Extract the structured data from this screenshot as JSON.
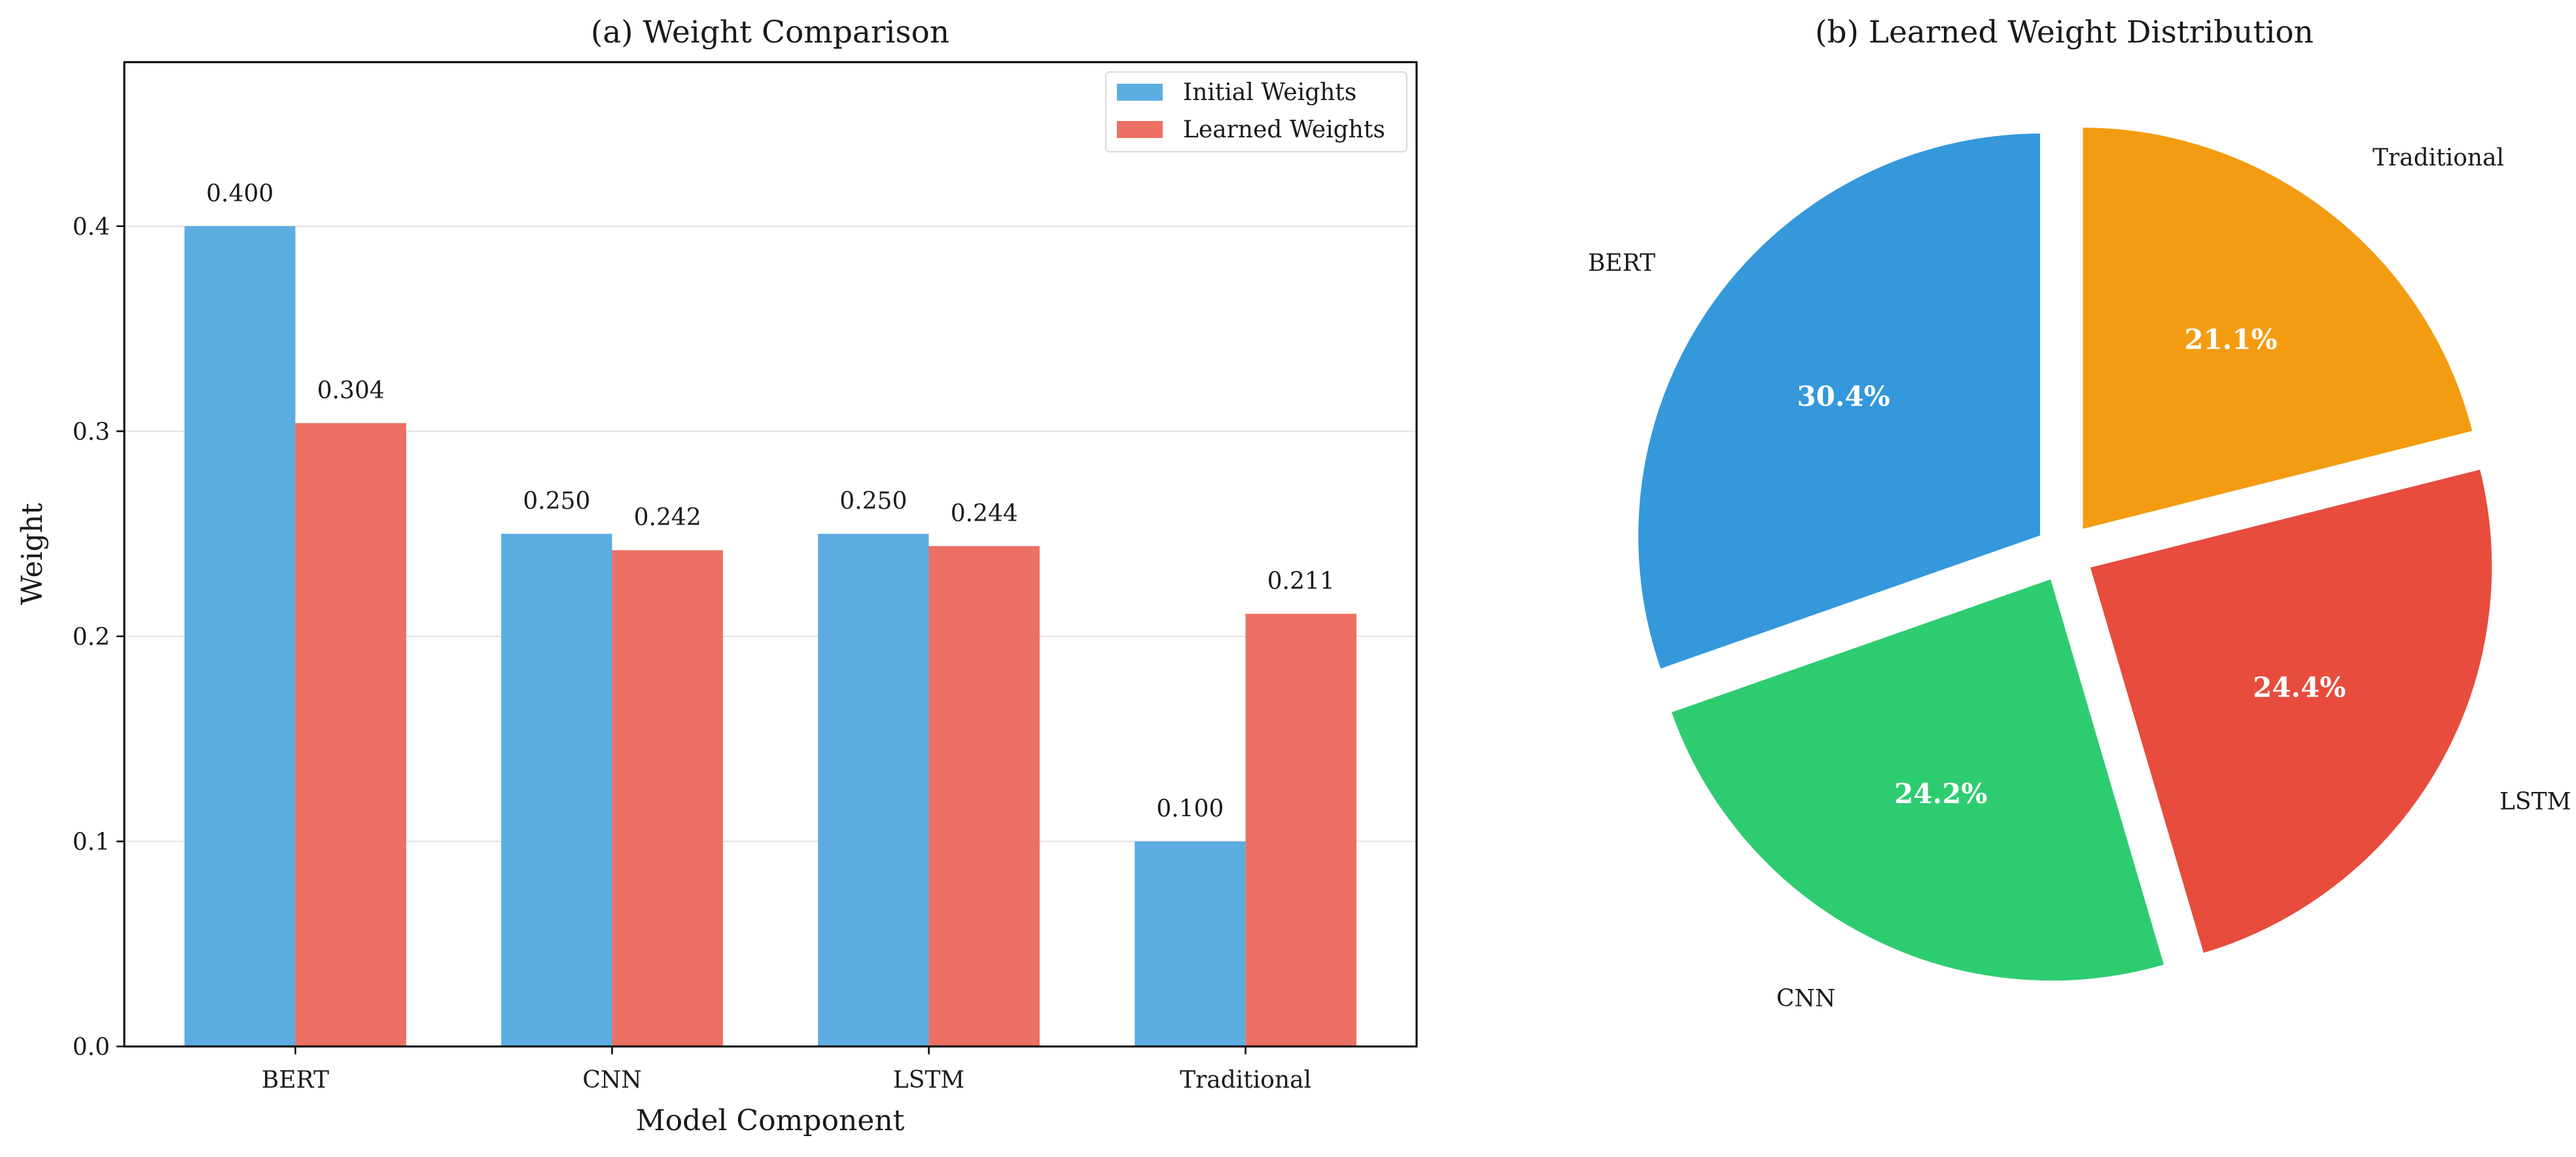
{
  "chart_data": [
    {
      "type": "bar",
      "title": "(a) Weight Comparison",
      "xlabel": "Model Component",
      "ylabel": "Weight",
      "categories": [
        "BERT",
        "CNN",
        "LSTM",
        "Traditional"
      ],
      "series": [
        {
          "name": "Initial Weights",
          "values": [
            0.4,
            0.25,
            0.25,
            0.1
          ],
          "labels": [
            "0.400",
            "0.250",
            "0.250",
            "0.100"
          ],
          "color": "#5DADE2"
        },
        {
          "name": "Learned Weights",
          "values": [
            0.304,
            0.242,
            0.244,
            0.211
          ],
          "labels": [
            "0.304",
            "0.242",
            "0.244",
            "0.211"
          ],
          "color": "#EC7063"
        }
      ],
      "ylim": [
        0,
        0.48
      ],
      "yticks": [
        0.0,
        0.1,
        0.2,
        0.3,
        0.4
      ],
      "ytick_labels": [
        "0.0",
        "0.1",
        "0.2",
        "0.3",
        "0.4"
      ],
      "grid": "horizontal",
      "legend_position": "top-right"
    },
    {
      "type": "pie",
      "title": "(b) Learned Weight Distribution",
      "labels": [
        "BERT",
        "CNN",
        "LSTM",
        "Traditional"
      ],
      "values": [
        30.4,
        24.2,
        24.4,
        21.1
      ],
      "percent_labels": [
        "30.4%",
        "24.2%",
        "24.4%",
        "21.1%"
      ],
      "colors": [
        "#3498DB",
        "#2ECC71",
        "#E74C3C",
        "#F39C12"
      ],
      "start_angle_deg": 90,
      "direction": "counterclockwise",
      "exploded": true
    }
  ]
}
